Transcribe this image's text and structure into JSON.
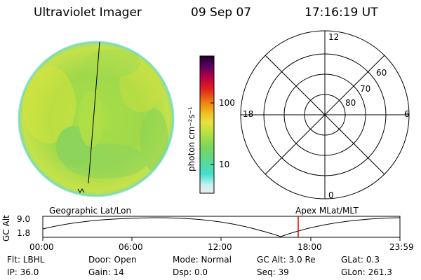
{
  "header": {
    "title": "Ultraviolet Imager",
    "date": "09 Sep 07",
    "time": "17:16:19 UT"
  },
  "colorbar": {
    "label": "photon cm⁻²s⁻¹",
    "ticks": [
      "100",
      "10"
    ],
    "colors": [
      "#e8e8e8",
      "#c8f0f0",
      "#40e0d0",
      "#7cd65a",
      "#b8e040",
      "#e8e040",
      "#f0c020",
      "#f08010",
      "#e02020",
      "#c00040",
      "#600060",
      "#200030"
    ]
  },
  "polar_plot": {
    "clock_labels": [
      "12",
      "18",
      "6",
      "0"
    ],
    "lat_labels": [
      "60",
      "70",
      "80"
    ]
  },
  "timeline": {
    "ylabel": "GC Alt",
    "ytick_top": "9.0",
    "ytick_bottom": "1.8",
    "left_label": "Geographic Lat/Lon",
    "right_label": "Apex  MLat/MLT",
    "xticks": [
      "00:00",
      "06:00",
      "12:00",
      "18:00",
      "23:59"
    ],
    "current_marker_hour": 17.27
  },
  "info": {
    "flt": "Flt: LBHL",
    "ip": "IP: 36.0",
    "door": "Door: Open",
    "gain": "Gain: 14",
    "mode": "Mode: Normal",
    "dsp": "Dsp:       0.0",
    "gcalt": "GC Alt: 3.0 Re",
    "seq": "Seq: 39",
    "glat": "GLat:     0.3",
    "glon": "GLon: 261.3"
  }
}
